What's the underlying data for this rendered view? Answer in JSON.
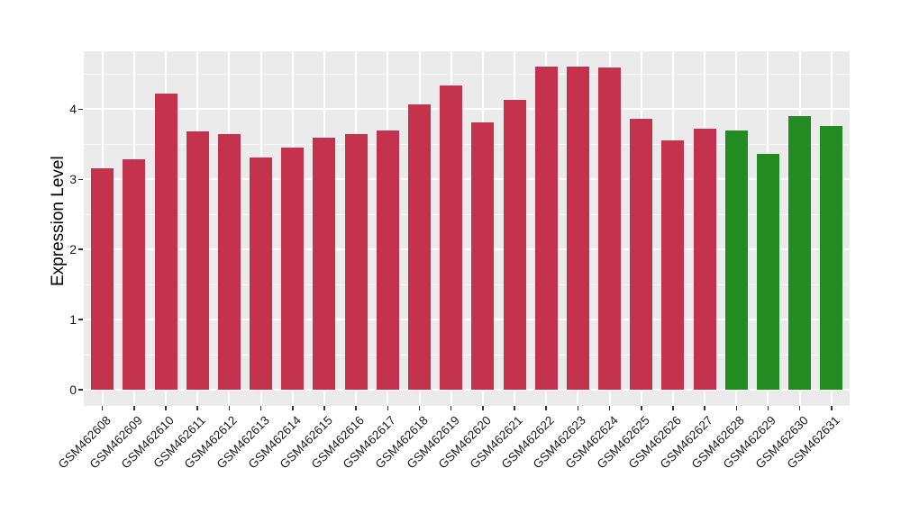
{
  "chart_data": {
    "type": "bar",
    "title": "",
    "xlabel": "",
    "ylabel": "Expression Level",
    "categories": [
      "GSM462608",
      "GSM462609",
      "GSM462610",
      "GSM462611",
      "GSM462612",
      "GSM462613",
      "GSM462614",
      "GSM462615",
      "GSM462616",
      "GSM462617",
      "GSM462618",
      "GSM462619",
      "GSM462620",
      "GSM462621",
      "GSM462622",
      "GSM462623",
      "GSM462624",
      "GSM462625",
      "GSM462626",
      "GSM462627",
      "GSM462628",
      "GSM462629",
      "GSM462630",
      "GSM462631"
    ],
    "values": [
      3.16,
      3.29,
      4.22,
      3.68,
      3.65,
      3.31,
      3.45,
      3.59,
      3.65,
      3.7,
      4.07,
      4.34,
      3.81,
      4.13,
      4.61,
      4.61,
      4.59,
      3.87,
      3.56,
      3.72,
      3.7,
      3.36,
      3.9,
      3.76
    ],
    "bar_colors": [
      "#C5324E",
      "#C5324E",
      "#C5324E",
      "#C5324E",
      "#C5324E",
      "#C5324E",
      "#C5324E",
      "#C5324E",
      "#C5324E",
      "#C5324E",
      "#C5324E",
      "#C5324E",
      "#C5324E",
      "#C5324E",
      "#C5324E",
      "#C5324E",
      "#C5324E",
      "#C5324E",
      "#C5324E",
      "#C5324E",
      "#228B22",
      "#228B22",
      "#228B22",
      "#228B22"
    ],
    "yticks": [
      0,
      1,
      2,
      3,
      4
    ],
    "ylim": [
      -0.23,
      4.83
    ],
    "grid": "major white + minor white on gray panel",
    "legend": "none",
    "colors": {
      "panel_background": "#EBEBEB",
      "grid_major": "#FFFFFF",
      "bar_crimson": "#C5324E",
      "bar_green": "#228B22",
      "tick_mark": "#333333",
      "axis_text": "#1A1A1A"
    }
  }
}
